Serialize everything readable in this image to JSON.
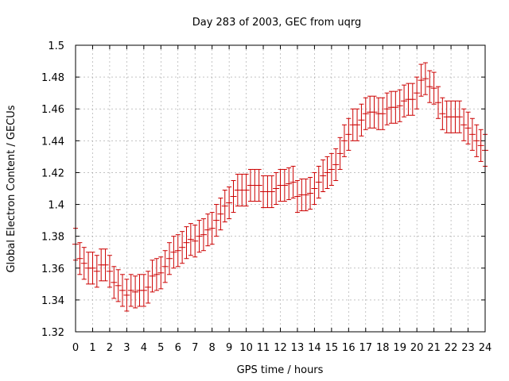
{
  "chart_data": {
    "type": "scatter",
    "title": "Day 283 of 2003, GEC from uqrg",
    "xlabel": "GPS time / hours",
    "ylabel": "Global Electron Content / GECUs",
    "xlim": [
      0,
      24
    ],
    "ylim": [
      1.32,
      1.5
    ],
    "xticks": [
      0,
      1,
      2,
      3,
      4,
      5,
      6,
      7,
      8,
      9,
      10,
      11,
      12,
      13,
      14,
      15,
      16,
      17,
      18,
      19,
      20,
      21,
      22,
      23,
      24
    ],
    "yticks": [
      1.32,
      1.34,
      1.36,
      1.38,
      1.4,
      1.42,
      1.44,
      1.46,
      1.48,
      1.5
    ],
    "grid": true,
    "legend": "none",
    "series_color": "#cc0000",
    "error_half_width": 0.01,
    "points": [
      [
        0.0,
        1.375
      ],
      [
        0.25,
        1.366
      ],
      [
        0.5,
        1.363
      ],
      [
        0.75,
        1.36
      ],
      [
        1.0,
        1.36
      ],
      [
        1.25,
        1.358
      ],
      [
        1.5,
        1.362
      ],
      [
        1.75,
        1.362
      ],
      [
        2.0,
        1.358
      ],
      [
        2.25,
        1.351
      ],
      [
        2.5,
        1.349
      ],
      [
        2.75,
        1.346
      ],
      [
        3.0,
        1.343
      ],
      [
        3.25,
        1.346
      ],
      [
        3.5,
        1.345
      ],
      [
        3.75,
        1.346
      ],
      [
        4.0,
        1.346
      ],
      [
        4.25,
        1.348
      ],
      [
        4.5,
        1.355
      ],
      [
        4.75,
        1.356
      ],
      [
        5.0,
        1.357
      ],
      [
        5.25,
        1.361
      ],
      [
        5.5,
        1.366
      ],
      [
        5.75,
        1.37
      ],
      [
        6.0,
        1.371
      ],
      [
        6.25,
        1.373
      ],
      [
        6.5,
        1.376
      ],
      [
        6.75,
        1.378
      ],
      [
        7.0,
        1.377
      ],
      [
        7.25,
        1.38
      ],
      [
        7.5,
        1.381
      ],
      [
        7.75,
        1.384
      ],
      [
        8.0,
        1.385
      ],
      [
        8.25,
        1.39
      ],
      [
        8.5,
        1.394
      ],
      [
        8.75,
        1.399
      ],
      [
        9.0,
        1.401
      ],
      [
        9.25,
        1.405
      ],
      [
        9.5,
        1.409
      ],
      [
        9.75,
        1.409
      ],
      [
        10.0,
        1.409
      ],
      [
        10.25,
        1.412
      ],
      [
        10.5,
        1.412
      ],
      [
        10.75,
        1.412
      ],
      [
        11.0,
        1.408
      ],
      [
        11.25,
        1.408
      ],
      [
        11.5,
        1.408
      ],
      [
        11.75,
        1.41
      ],
      [
        12.0,
        1.412
      ],
      [
        12.25,
        1.412
      ],
      [
        12.5,
        1.413
      ],
      [
        12.75,
        1.414
      ],
      [
        13.0,
        1.405
      ],
      [
        13.25,
        1.406
      ],
      [
        13.5,
        1.406
      ],
      [
        13.75,
        1.407
      ],
      [
        14.0,
        1.41
      ],
      [
        14.25,
        1.414
      ],
      [
        14.5,
        1.418
      ],
      [
        14.75,
        1.42
      ],
      [
        15.0,
        1.422
      ],
      [
        15.25,
        1.425
      ],
      [
        15.5,
        1.432
      ],
      [
        15.75,
        1.44
      ],
      [
        16.0,
        1.444
      ],
      [
        16.25,
        1.45
      ],
      [
        16.5,
        1.45
      ],
      [
        16.75,
        1.453
      ],
      [
        17.0,
        1.457
      ],
      [
        17.25,
        1.458
      ],
      [
        17.5,
        1.458
      ],
      [
        17.75,
        1.457
      ],
      [
        18.0,
        1.457
      ],
      [
        18.25,
        1.46
      ],
      [
        18.5,
        1.461
      ],
      [
        18.75,
        1.461
      ],
      [
        19.0,
        1.462
      ],
      [
        19.25,
        1.465
      ],
      [
        19.5,
        1.466
      ],
      [
        19.75,
        1.466
      ],
      [
        20.0,
        1.47
      ],
      [
        20.25,
        1.478
      ],
      [
        20.5,
        1.479
      ],
      [
        20.75,
        1.474
      ],
      [
        21.0,
        1.473
      ],
      [
        21.25,
        1.464
      ],
      [
        21.5,
        1.457
      ],
      [
        21.75,
        1.455
      ],
      [
        22.0,
        1.455
      ],
      [
        22.25,
        1.455
      ],
      [
        22.5,
        1.455
      ],
      [
        22.75,
        1.45
      ],
      [
        23.0,
        1.448
      ],
      [
        23.25,
        1.444
      ],
      [
        23.5,
        1.44
      ],
      [
        23.75,
        1.437
      ],
      [
        24.0,
        1.434
      ]
    ]
  }
}
